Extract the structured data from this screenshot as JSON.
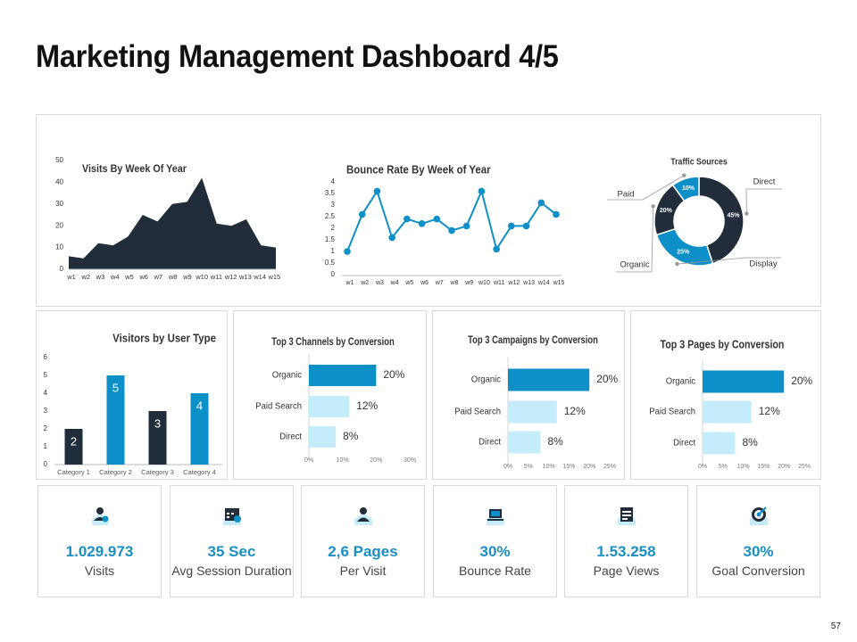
{
  "page": {
    "title": "Marketing Management Dashboard 4/5",
    "page_number": "57"
  },
  "colors": {
    "dark": "#222d3b",
    "blue": "#0d8fc7",
    "light": "#c5ecfa"
  },
  "chart_data": [
    {
      "id": "visits",
      "type": "area",
      "title": "Visits By Week Of Year",
      "categories": [
        "w1",
        "w2",
        "w3",
        "w4",
        "w5",
        "w6",
        "w7",
        "w8",
        "w9",
        "w10",
        "w11",
        "w12",
        "w13",
        "w14",
        "w15"
      ],
      "values": [
        6,
        5,
        12,
        11,
        15,
        25,
        22,
        30,
        31,
        42,
        21,
        20,
        23,
        11,
        10
      ],
      "ylim": [
        0,
        50
      ],
      "yticks": [
        "0",
        "10",
        "20",
        "30",
        "40",
        "50"
      ]
    },
    {
      "id": "bounce",
      "type": "line",
      "title": "Bounce Rate By Week of Year",
      "categories": [
        "w1",
        "w2",
        "w3",
        "w4",
        "w5",
        "w6",
        "w7",
        "w8",
        "w9",
        "w10",
        "w11",
        "w12",
        "w13",
        "w14",
        "w15"
      ],
      "values": [
        1,
        2.6,
        3.6,
        1.6,
        2.4,
        2.2,
        2.4,
        1.9,
        2.1,
        3.6,
        1.1,
        2.1,
        2.1,
        3.1,
        2.6
      ],
      "ylim": [
        0,
        4
      ],
      "yticks": [
        "0",
        "0.5",
        "1",
        "1.5",
        "2",
        "2.5",
        "3",
        "3.5",
        "4"
      ]
    },
    {
      "id": "traffic",
      "type": "pie",
      "title": "Traffic Sources",
      "slices": [
        {
          "name": "Direct",
          "value": 45,
          "label": "45%"
        },
        {
          "name": "Display",
          "value": 25,
          "label": "25%"
        },
        {
          "name": "Organic",
          "value": 20,
          "label": "20%"
        },
        {
          "name": "Paid",
          "value": 10,
          "label": "10%"
        }
      ]
    },
    {
      "id": "visitors",
      "type": "bar",
      "title": "Visitors by User Type",
      "categories": [
        "Category 1",
        "Category 2",
        "Category 3",
        "Category 4"
      ],
      "values": [
        2,
        5,
        3,
        4
      ],
      "labels": [
        "2",
        "5",
        "3",
        "4"
      ],
      "ylim": [
        0,
        6
      ],
      "yticks": [
        "0",
        "1",
        "2",
        "3",
        "4",
        "5",
        "6"
      ]
    },
    {
      "id": "channels",
      "type": "bar",
      "orientation": "horizontal",
      "title": "Top 3 Channels by Conversion",
      "categories": [
        "Organic",
        "Paid Search",
        "Direct"
      ],
      "values": [
        20,
        12,
        8
      ],
      "labels": [
        "20%",
        "12%",
        "8%"
      ],
      "xlim": [
        0,
        30
      ],
      "xticks": [
        "0%",
        "10%",
        "20%",
        "30%"
      ]
    },
    {
      "id": "campaigns",
      "type": "bar",
      "orientation": "horizontal",
      "title": "Top 3 Campaigns by Conversion",
      "categories": [
        "Organic",
        "Paid Search",
        "Direct"
      ],
      "values": [
        20,
        12,
        8
      ],
      "labels": [
        "20%",
        "12%",
        "8%"
      ],
      "xlim": [
        0,
        25
      ],
      "xticks": [
        "0%",
        "5%",
        "10%",
        "15%",
        "20%",
        "25%"
      ]
    },
    {
      "id": "pages",
      "type": "bar",
      "orientation": "horizontal",
      "title": "Top 3 Pages by Conversion",
      "categories": [
        "Organic",
        "Paid Search",
        "Direct"
      ],
      "values": [
        20,
        12,
        8
      ],
      "labels": [
        "20%",
        "12%",
        "8%"
      ],
      "xlim": [
        0,
        25
      ],
      "xticks": [
        "0%",
        "5%",
        "10%",
        "15%",
        "20%",
        "25%"
      ]
    }
  ],
  "kpis": [
    {
      "value": "1.029.973",
      "label": "Visits",
      "icon": "user-check-icon"
    },
    {
      "value": "35 Sec",
      "label": "Avg Session Duration",
      "icon": "calendar-clock-icon"
    },
    {
      "value": "2,6 Pages",
      "label": "Per Visit",
      "icon": "user-icon"
    },
    {
      "value": "30%",
      "label": "Bounce Rate",
      "icon": "laptop-icon"
    },
    {
      "value": "1.53.258",
      "label": "Page Views",
      "icon": "browser-window-icon"
    },
    {
      "value": "30%",
      "label": "Goal Conversion",
      "icon": "target-icon"
    }
  ]
}
